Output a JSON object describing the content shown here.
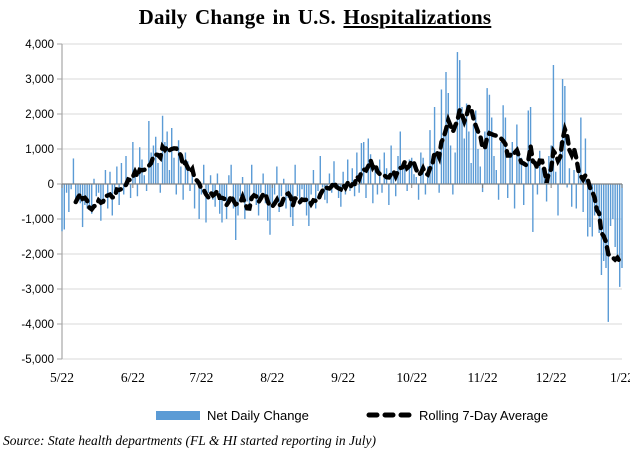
{
  "title": {
    "part1": "Daily Change ",
    "part2": "in U.S. ",
    "part3_underlined": "Hospitalizations"
  },
  "legend": {
    "bar_label": "Net Daily Change",
    "line_label": "Rolling 7-Day Average"
  },
  "source_note": "Source: State health departments (FL & HI started reporting in July)",
  "colors": {
    "bar": "#5B9BD5",
    "rolling_line": "#000000",
    "gridline": "#D9D9D9",
    "axis": "#A6A6A6",
    "zero_axis": "#808080",
    "text": "#000000"
  },
  "y_axis": {
    "max": 4000,
    "min": -5000,
    "step": 1000,
    "tick_labels": [
      "4,000",
      "3,000",
      "2,000",
      "1,000",
      "0",
      "-1,000",
      "-2,000",
      "-3,000",
      "-4,000",
      "-5,000"
    ]
  },
  "x_axis": {
    "tick_labels": [
      "5/22",
      "6/22",
      "7/22",
      "8/22",
      "9/22",
      "10/22",
      "11/22",
      "12/22",
      "1/22"
    ],
    "tick_day_indices": [
      0,
      31,
      61,
      92,
      123,
      153,
      184,
      214,
      245
    ]
  },
  "chart_data": {
    "type": "bar",
    "title": "Daily Change in U.S. Hospitalizations",
    "x_range": [
      "5/22",
      "1/22"
    ],
    "ylim": [
      -5000,
      4000
    ],
    "grid": true,
    "legend_position": "bottom",
    "series": [
      {
        "name": "Net Daily Change",
        "type": "bar",
        "color": "#5B9BD5",
        "start_date": "5/22",
        "daily_values": [
          -1350,
          -1300,
          -250,
          -800,
          -150,
          730,
          -500,
          -450,
          -550,
          -1230,
          -600,
          -700,
          -680,
          -850,
          150,
          -350,
          -250,
          -1050,
          -500,
          400,
          -700,
          350,
          -900,
          -250,
          500,
          -600,
          600,
          -300,
          800,
          150,
          -400,
          1200,
          400,
          -350,
          1050,
          700,
          250,
          -200,
          1800,
          900,
          1100,
          1350,
          600,
          -250,
          1950,
          1200,
          1500,
          400,
          1600,
          750,
          -300,
          1250,
          500,
          -450,
          900,
          650,
          -200,
          350,
          -700,
          150,
          -1000,
          -300,
          550,
          -1100,
          -250,
          250,
          -450,
          -650,
          300,
          -850,
          -1100,
          -450,
          -1000,
          250,
          550,
          -700,
          -1600,
          -900,
          -350,
          200,
          -1000,
          -500,
          -750,
          550,
          -400,
          -600,
          -900,
          -250,
          300,
          -550,
          -1050,
          -1450,
          -600,
          -300,
          500,
          -800,
          -350,
          150,
          -700,
          -400,
          -950,
          -1200,
          550,
          -350,
          -600,
          -150,
          -500,
          -900,
          -1200,
          -300,
          400,
          -700,
          -200,
          800,
          -100,
          -450,
          -550,
          300,
          -250,
          650,
          -150,
          -400,
          -650,
          350,
          -300,
          700,
          -200,
          450,
          -350,
          900,
          -250,
          1170,
          1200,
          -400,
          1300,
          850,
          -550,
          400,
          -300,
          700,
          -250,
          900,
          450,
          -600,
          1100,
          300,
          -350,
          800,
          1500,
          600,
          550,
          -200,
          700,
          750,
          280,
          200,
          -450,
          900,
          750,
          -300,
          500,
          1540,
          800,
          2200,
          900,
          -250,
          2700,
          1400,
          3200,
          2600,
          1100,
          -300,
          900,
          3770,
          3540,
          2200,
          1300,
          2300,
          1500,
          600,
          1700,
          2100,
          1000,
          500,
          -230,
          1500,
          2740,
          2550,
          1900,
          800,
          400,
          -450,
          1200,
          2250,
          1900,
          -400,
          800,
          1200,
          -700,
          1700,
          950,
          750,
          -600,
          500,
          2100,
          2200,
          -1370,
          600,
          -300,
          950,
          450,
          400,
          -500,
          800,
          1100,
          3400,
          350,
          -900,
          1200,
          3000,
          2800,
          -100,
          450,
          -650,
          400,
          -700,
          300,
          1900,
          -800,
          1300,
          -1500,
          -1230,
          -1500,
          -900,
          -600,
          -1400,
          -2600,
          -2200,
          -2400,
          -3940,
          -1200,
          -1000,
          -1800,
          -2170,
          -2940,
          -2400
        ]
      },
      {
        "name": "Rolling 7-Day Average",
        "type": "line",
        "style": "dashed",
        "color": "#000000",
        "derived": "trailing 7-day mean of Net Daily Change"
      }
    ]
  }
}
